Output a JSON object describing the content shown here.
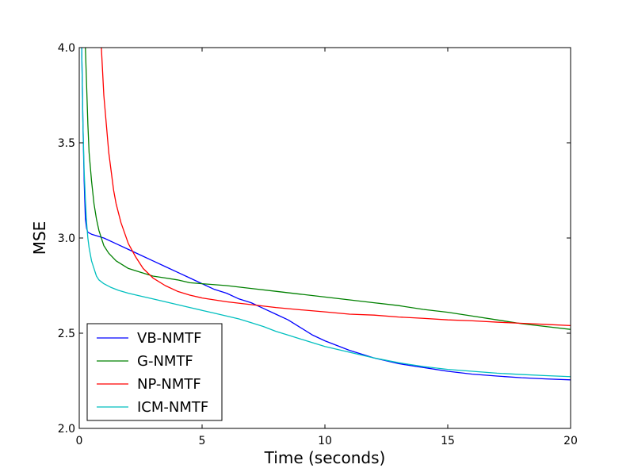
{
  "chart_data": {
    "type": "line",
    "title": "",
    "xlabel": "Time (seconds)",
    "ylabel": "MSE",
    "xlim": [
      0,
      20
    ],
    "ylim": [
      2.0,
      4.0
    ],
    "xticks": [
      0,
      5,
      10,
      15,
      20
    ],
    "xtick_labels": [
      "0",
      "5",
      "10",
      "15",
      "20"
    ],
    "yticks": [
      2.0,
      2.5,
      3.0,
      3.5,
      4.0
    ],
    "ytick_labels": [
      "2.0",
      "2.5",
      "3.0",
      "3.5",
      "4.0"
    ],
    "grid": false,
    "legend_position": "lower-left",
    "series": [
      {
        "name": "VB-NMTF",
        "color": "#0000ff",
        "x": [
          0.1,
          0.15,
          0.2,
          0.25,
          0.3,
          0.35,
          0.5,
          1,
          1.5,
          2,
          2.5,
          3,
          3.5,
          4,
          4.5,
          5,
          5.5,
          6,
          6.5,
          7,
          7.5,
          8,
          8.5,
          9,
          9.5,
          10,
          11,
          12,
          13,
          14,
          15,
          16,
          17,
          18,
          19,
          20
        ],
        "y": [
          4.0,
          3.6,
          3.3,
          3.1,
          3.05,
          3.03,
          3.02,
          3.0,
          2.97,
          2.94,
          2.91,
          2.88,
          2.85,
          2.82,
          2.79,
          2.76,
          2.73,
          2.71,
          2.68,
          2.66,
          2.63,
          2.6,
          2.57,
          2.53,
          2.49,
          2.46,
          2.41,
          2.37,
          2.34,
          2.32,
          2.3,
          2.285,
          2.275,
          2.266,
          2.26,
          2.255
        ]
      },
      {
        "name": "G-NMTF",
        "color": "#008000",
        "x": [
          0.25,
          0.3,
          0.35,
          0.4,
          0.5,
          0.6,
          0.7,
          0.8,
          1,
          1.2,
          1.5,
          2,
          2.5,
          3,
          3.5,
          4,
          4.5,
          5,
          6,
          7,
          8,
          9,
          10,
          11,
          12,
          13,
          14,
          15,
          16,
          17,
          18,
          19,
          20
        ],
        "y": [
          4.0,
          3.8,
          3.6,
          3.45,
          3.3,
          3.18,
          3.1,
          3.04,
          2.96,
          2.92,
          2.88,
          2.84,
          2.82,
          2.8,
          2.79,
          2.78,
          2.765,
          2.76,
          2.75,
          2.735,
          2.72,
          2.705,
          2.69,
          2.675,
          2.66,
          2.645,
          2.625,
          2.61,
          2.59,
          2.57,
          2.55,
          2.535,
          2.52
        ]
      },
      {
        "name": "NP-NMTF",
        "color": "#ff0000",
        "x": [
          0.9,
          1.0,
          1.1,
          1.2,
          1.3,
          1.4,
          1.5,
          1.7,
          2,
          2.3,
          2.6,
          3,
          3.5,
          4,
          4.5,
          5,
          6,
          7,
          8,
          9,
          10,
          11,
          12,
          13,
          14,
          15,
          16,
          17,
          18,
          19,
          20
        ],
        "y": [
          4.0,
          3.75,
          3.6,
          3.45,
          3.35,
          3.25,
          3.18,
          3.08,
          2.97,
          2.9,
          2.84,
          2.79,
          2.75,
          2.72,
          2.7,
          2.685,
          2.665,
          2.65,
          2.635,
          2.623,
          2.612,
          2.6,
          2.595,
          2.585,
          2.578,
          2.57,
          2.565,
          2.558,
          2.552,
          2.546,
          2.54
        ]
      },
      {
        "name": "ICM-NMTF",
        "color": "#00bfbf",
        "x": [
          0.1,
          0.15,
          0.2,
          0.25,
          0.3,
          0.35,
          0.4,
          0.5,
          0.6,
          0.7,
          0.8,
          1.0,
          1.3,
          1.6,
          2,
          2.5,
          3,
          3.5,
          4,
          4.5,
          5,
          5.5,
          6,
          6.5,
          7,
          7.5,
          8,
          8.5,
          9,
          9.5,
          10,
          11,
          12,
          13,
          14,
          15,
          16,
          17,
          18,
          19,
          20
        ],
        "y": [
          4.0,
          3.6,
          3.35,
          3.2,
          3.08,
          3.0,
          2.95,
          2.88,
          2.84,
          2.8,
          2.78,
          2.76,
          2.74,
          2.725,
          2.71,
          2.695,
          2.68,
          2.665,
          2.65,
          2.635,
          2.62,
          2.605,
          2.59,
          2.575,
          2.555,
          2.535,
          2.51,
          2.49,
          2.47,
          2.45,
          2.43,
          2.4,
          2.37,
          2.345,
          2.325,
          2.31,
          2.3,
          2.29,
          2.283,
          2.277,
          2.272
        ]
      }
    ]
  }
}
